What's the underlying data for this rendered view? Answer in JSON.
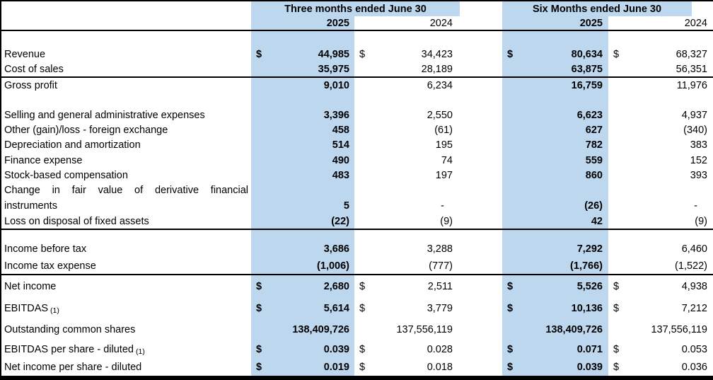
{
  "colors": {
    "highlight_blue": "#BDD7EE",
    "border_black": "#000000",
    "text": "#000000"
  },
  "header": {
    "groups": [
      {
        "title": "Three months ended June 30",
        "col_2025": "2025",
        "col_2024": "2024"
      },
      {
        "title": "Six Months ended June 30",
        "col_2025": "2025",
        "col_2024": "2024"
      }
    ]
  },
  "rows": [
    {
      "kind": "spacer"
    },
    {
      "kind": "data",
      "label": "Revenue",
      "dollar": true,
      "values": [
        "44,985",
        "34,423",
        "80,634",
        "68,327"
      ]
    },
    {
      "kind": "data",
      "label": "Cost of sales",
      "values": [
        "35,975",
        "28,189",
        "63,875",
        "56,351"
      ],
      "rule_below": true
    },
    {
      "kind": "data",
      "label": "Gross profit",
      "values": [
        "9,010",
        "6,234",
        "16,759",
        "11,976"
      ]
    },
    {
      "kind": "spacer"
    },
    {
      "kind": "data",
      "label": "Selling and general administrative expenses",
      "values": [
        "3,396",
        "2,550",
        "6,623",
        "4,937"
      ]
    },
    {
      "kind": "data",
      "label": "Other (gain)/loss - foreign exchange",
      "values": [
        "458",
        "(61)",
        "627",
        "(340)"
      ]
    },
    {
      "kind": "data",
      "label": "Depreciation and amortization",
      "values": [
        "514",
        "195",
        "782",
        "383"
      ]
    },
    {
      "kind": "data",
      "label": "Finance expense",
      "values": [
        "490",
        "74",
        "559",
        "152"
      ]
    },
    {
      "kind": "data",
      "label": "Stock-based compensation",
      "values": [
        "483",
        "197",
        "860",
        "393"
      ]
    },
    {
      "kind": "label-only",
      "label": "Change in fair value of derivative financial",
      "justify_label": true
    },
    {
      "kind": "data",
      "label": "instruments",
      "values": [
        "5",
        "-",
        "(26)",
        "-"
      ]
    },
    {
      "kind": "data",
      "label": "Loss on disposal of fixed assets",
      "values": [
        "(22)",
        "(9)",
        "42",
        "(9)"
      ],
      "rule_below": true
    },
    {
      "kind": "spacer"
    },
    {
      "kind": "data",
      "label": "Income before tax",
      "values": [
        "3,686",
        "3,288",
        "7,292",
        "6,460"
      ]
    },
    {
      "kind": "data",
      "label": "Income tax expense",
      "values": [
        "(1,006)",
        "(777)",
        "(1,766)",
        "(1,522)"
      ],
      "rule_below": true
    },
    {
      "kind": "data",
      "label": "Net income",
      "dollar": true,
      "values": [
        "2,680",
        "2,511",
        "5,526",
        "4,938"
      ]
    },
    {
      "kind": "data",
      "label": "EBITDAS",
      "note": "(1)",
      "dollar": true,
      "values": [
        "5,614",
        "3,779",
        "10,136",
        "7,212"
      ]
    },
    {
      "kind": "data",
      "label": "Outstanding common shares",
      "values": [
        "138,409,726",
        "137,556,119",
        "138,409,726",
        "137,556,119"
      ]
    },
    {
      "kind": "data",
      "label": "EBITDAS per share - diluted",
      "note": "(1)",
      "dollar": true,
      "values": [
        "0.039",
        "0.028",
        "0.071",
        "0.053"
      ]
    },
    {
      "kind": "data",
      "label": "Net income per share - diluted",
      "dollar": true,
      "values": [
        "0.019",
        "0.018",
        "0.039",
        "0.036"
      ]
    }
  ]
}
